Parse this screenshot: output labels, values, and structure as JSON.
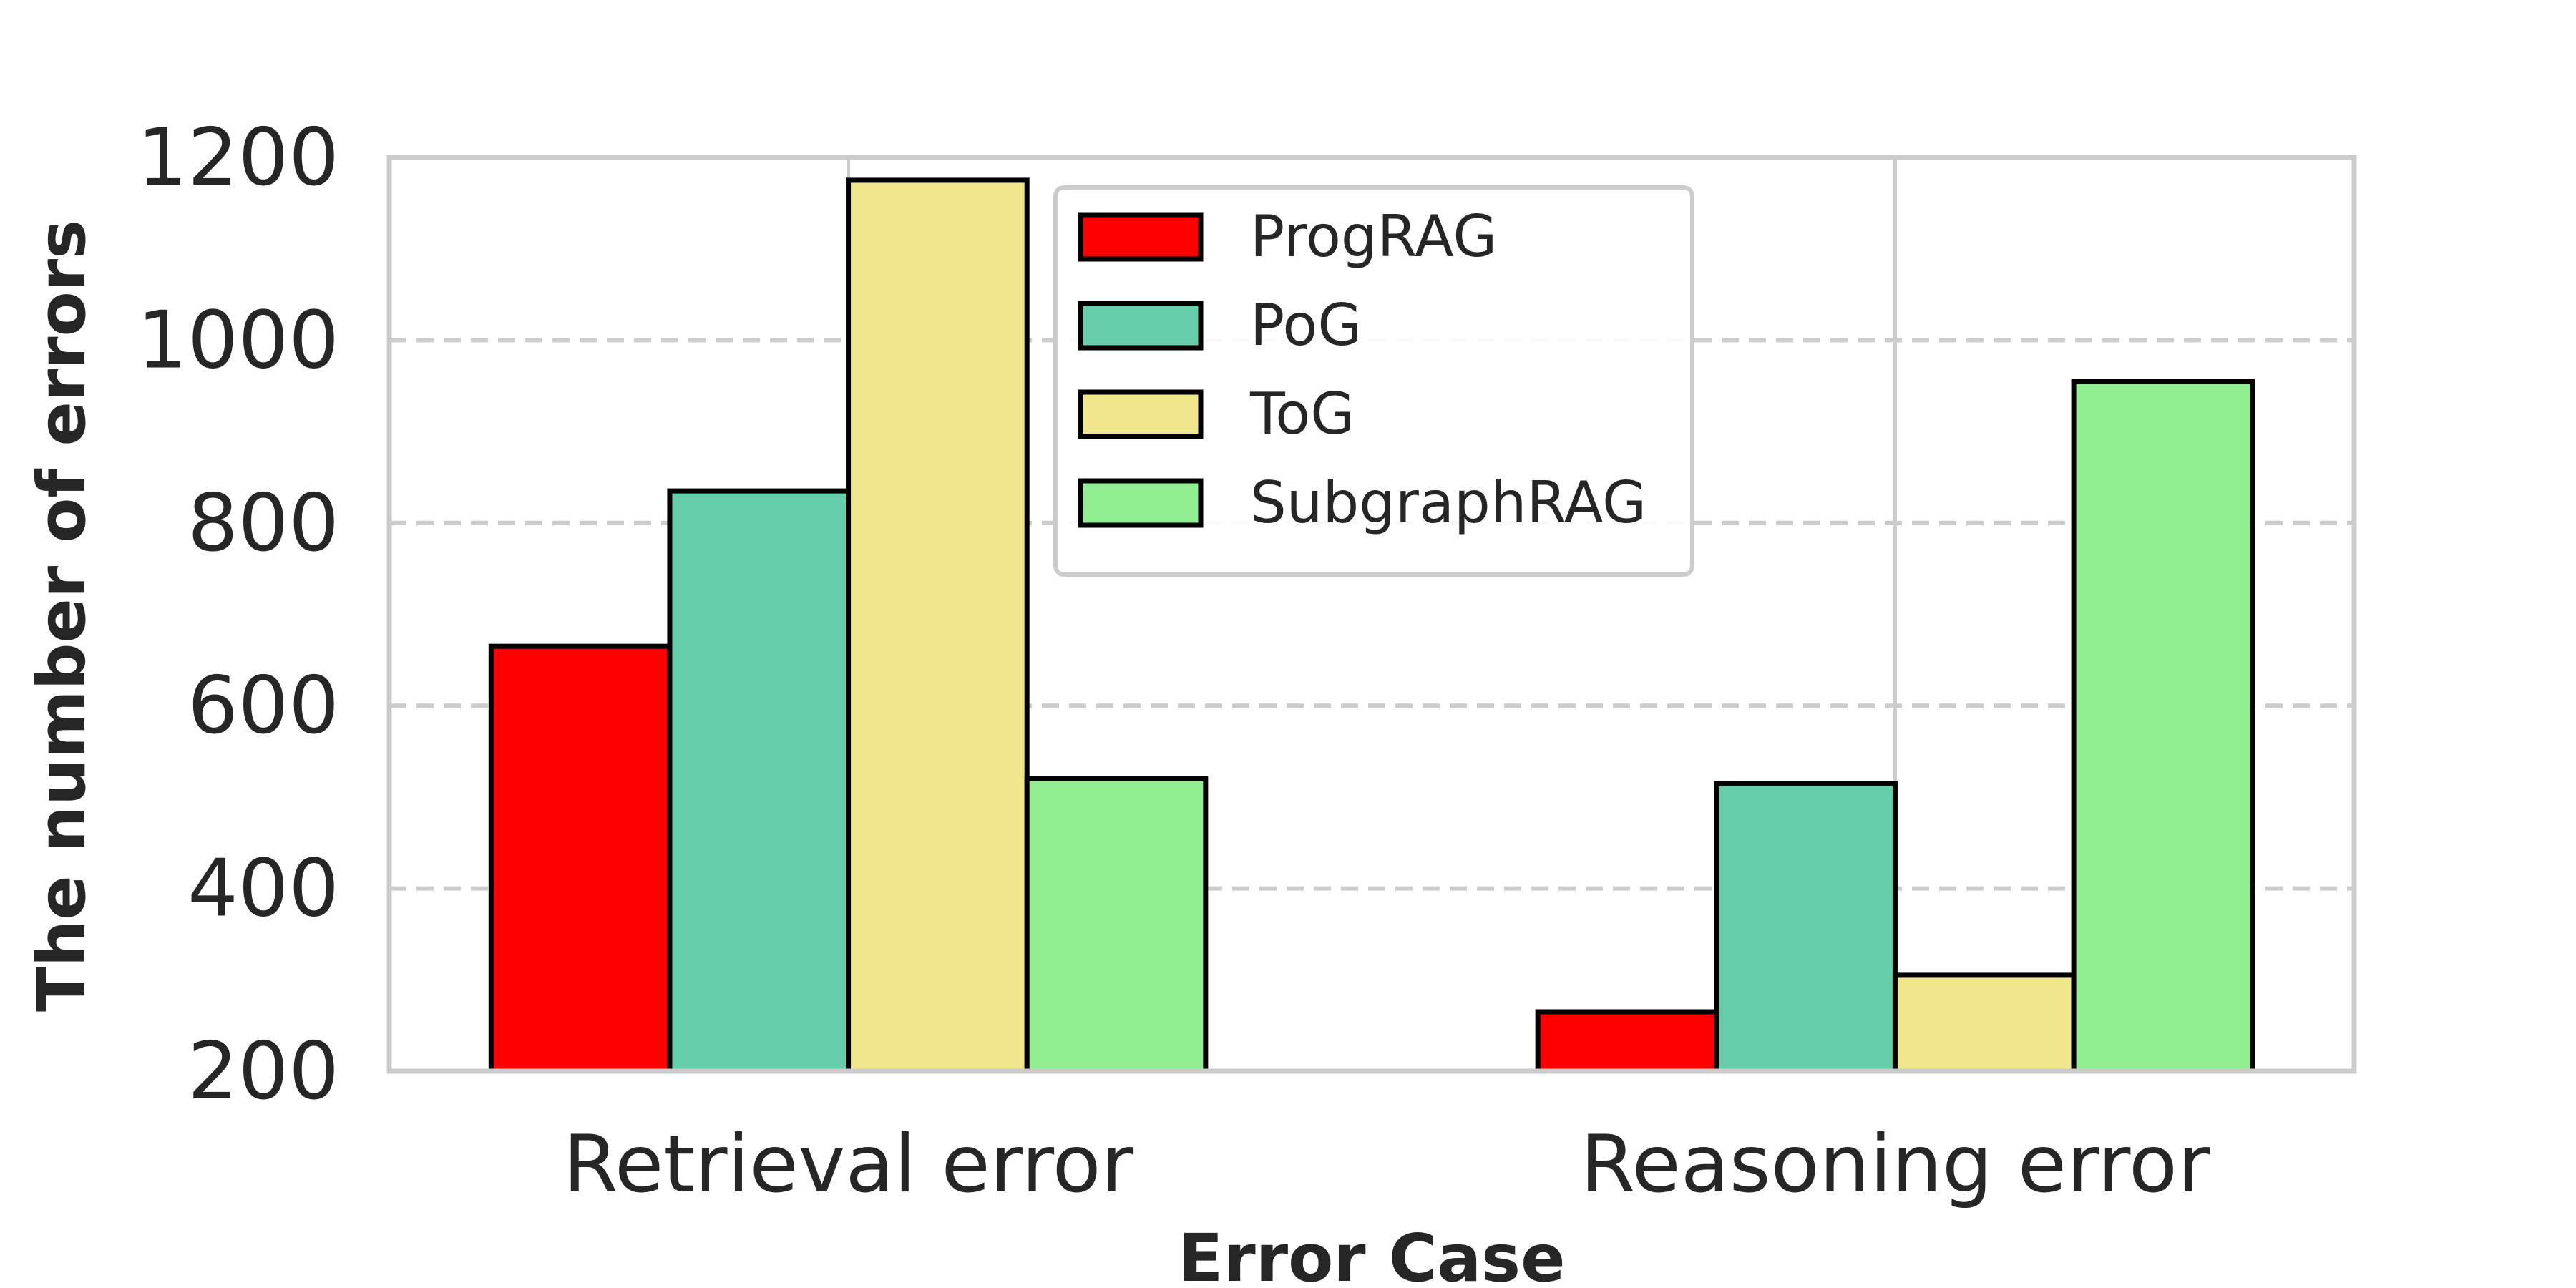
{
  "chart_data": {
    "type": "bar",
    "title": "",
    "xlabel": "Error Case",
    "ylabel": "The number of errors",
    "categories": [
      "Retrieval error",
      "Reasoning error"
    ],
    "series": [
      {
        "name": "ProgRAG",
        "values": [
          665,
          265
        ],
        "color": "#ff0000"
      },
      {
        "name": "PoG",
        "values": [
          835,
          515
        ],
        "color": "#66cdaa"
      },
      {
        "name": "ToG",
        "values": [
          1175,
          305
        ],
        "color": "#f0e68c"
      },
      {
        "name": "SubgraphRAG",
        "values": [
          520,
          955
        ],
        "color": "#90ee90"
      }
    ],
    "ylim": [
      200,
      1200
    ],
    "yticks": [
      200,
      400,
      600,
      800,
      1000,
      1200
    ],
    "grid": "y dashed, x solid",
    "legend_position": "top-center"
  }
}
